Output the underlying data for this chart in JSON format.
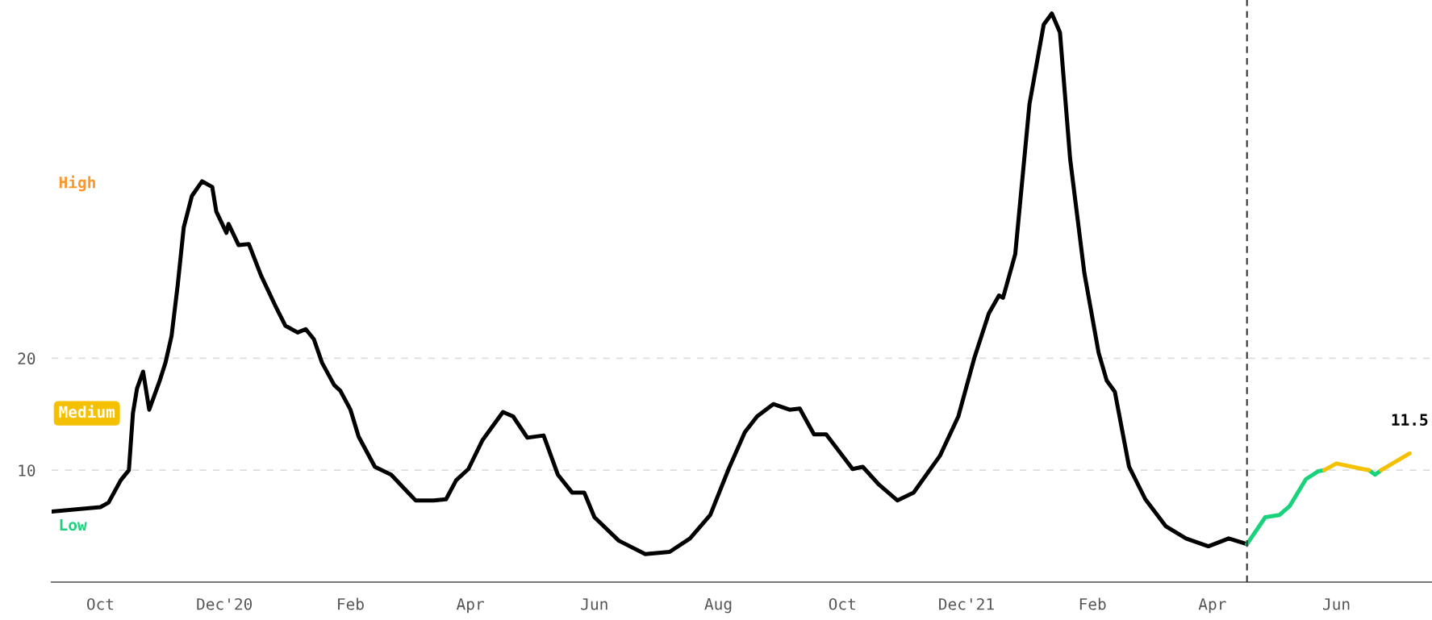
{
  "chart_data": {
    "type": "line",
    "series": [
      {
        "color": "#000000",
        "x": [
          "2020-09-07",
          "2020-10-01",
          "2020-10-05",
          "2020-10-11",
          "2020-10-15",
          "2020-10-17",
          "2020-10-19",
          "2020-10-22",
          "2020-10-25",
          "2020-10-30",
          "2020-11-02",
          "2020-11-05",
          "2020-11-08",
          "2020-11-11",
          "2020-11-15",
          "2020-11-20",
          "2020-11-25",
          "2020-11-27",
          "2020-12-02",
          "2020-12-03",
          "2020-12-08",
          "2020-12-13",
          "2020-12-19",
          "2020-12-26",
          "2020-12-31",
          "2021-01-06",
          "2021-01-10",
          "2021-01-14",
          "2021-01-18",
          "2021-01-24",
          "2021-01-27",
          "2021-02-01",
          "2021-02-05",
          "2021-02-13",
          "2021-02-21",
          "2021-03-05",
          "2021-03-14",
          "2021-03-20",
          "2021-03-25",
          "2021-03-31",
          "2021-04-07",
          "2021-04-17",
          "2021-04-22",
          "2021-04-29",
          "2021-05-07",
          "2021-05-14",
          "2021-05-21",
          "2021-05-27",
          "2021-06-01",
          "2021-06-13",
          "2021-06-26",
          "2021-07-08",
          "2021-07-18",
          "2021-07-28",
          "2021-08-06",
          "2021-08-14",
          "2021-08-20",
          "2021-08-28",
          "2021-09-05",
          "2021-09-10",
          "2021-09-17",
          "2021-09-23",
          "2021-10-06",
          "2021-10-11",
          "2021-10-19",
          "2021-10-28",
          "2021-11-05",
          "2021-11-18",
          "2021-11-27",
          "2021-12-05",
          "2021-12-12",
          "2021-12-17",
          "2021-12-19",
          "2021-12-25",
          "2022-01-01",
          "2022-01-08",
          "2022-01-12",
          "2022-01-16",
          "2022-01-21",
          "2022-01-28",
          "2022-02-04",
          "2022-02-08",
          "2022-02-12",
          "2022-02-19",
          "2022-02-27",
          "2022-03-09",
          "2022-03-19",
          "2022-03-30",
          "2022-04-09",
          "2022-04-18"
        ],
        "values": [
          6.3,
          6.7,
          7.1,
          9.1,
          10.0,
          15.1,
          17.3,
          18.8,
          15.4,
          17.9,
          19.6,
          22.0,
          26.5,
          31.7,
          34.5,
          35.8,
          35.3,
          33.1,
          31.2,
          32.0,
          30.1,
          30.2,
          27.4,
          24.7,
          22.9,
          22.3,
          22.6,
          21.7,
          19.6,
          17.6,
          17.1,
          15.4,
          13.0,
          10.3,
          9.6,
          7.3,
          7.3,
          7.4,
          9.1,
          10.1,
          12.7,
          15.2,
          14.8,
          12.9,
          13.1,
          9.6,
          8.0,
          8.0,
          5.8,
          3.7,
          2.5,
          2.7,
          3.9,
          6.0,
          10.1,
          13.4,
          14.8,
          15.9,
          15.4,
          15.5,
          13.2,
          13.2,
          10.1,
          10.3,
          8.7,
          7.3,
          8.0,
          11.3,
          14.8,
          20.1,
          24.0,
          25.6,
          25.4,
          29.3,
          42.7,
          49.8,
          50.8,
          49.1,
          37.8,
          27.6,
          20.5,
          18.0,
          17.0,
          10.3,
          7.4,
          5.0,
          3.9,
          3.2,
          3.9,
          3.4
        ]
      },
      {
        "color": "#19d37c",
        "x": [
          "2022-04-18",
          "2022-04-27",
          "2022-05-04",
          "2022-05-09",
          "2022-05-17",
          "2022-05-23",
          "2022-05-26",
          "2022-06-01",
          "2022-06-17",
          "2022-06-20",
          "2022-06-23"
        ],
        "values": [
          3.4,
          5.8,
          6.0,
          6.8,
          9.2,
          9.9,
          10.0,
          null,
          10.0,
          9.6,
          10.0
        ]
      },
      {
        "color": "#f5c000",
        "x": [
          "2022-05-26",
          "2022-06-01",
          "2022-06-14",
          "2022-06-17",
          "2022-06-20",
          "2022-06-23",
          "2022-07-07"
        ],
        "values": [
          10.0,
          10.6,
          10.1,
          10.0,
          null,
          10.0,
          11.5
        ]
      }
    ],
    "xlim": [
      "2020-09-07",
      "2022-07-18"
    ],
    "xticks": [
      {
        "value": "2020-10-01",
        "label": "Oct"
      },
      {
        "value": "2020-12-01",
        "label": "Dec'20"
      },
      {
        "value": "2021-02-01",
        "label": "Feb"
      },
      {
        "value": "2021-04-01",
        "label": "Apr"
      },
      {
        "value": "2021-06-01",
        "label": "Jun"
      },
      {
        "value": "2021-08-01",
        "label": "Aug"
      },
      {
        "value": "2021-10-01",
        "label": "Oct"
      },
      {
        "value": "2021-12-01",
        "label": "Dec'21"
      },
      {
        "value": "2022-02-01",
        "label": "Feb"
      },
      {
        "value": "2022-04-01",
        "label": "Apr"
      },
      {
        "value": "2022-06-01",
        "label": "Jun"
      }
    ],
    "ylim": [
      0,
      52
    ],
    "yticks": [
      10,
      20
    ],
    "grid": "y",
    "ref_lines": [
      {
        "axis": "x",
        "value": "2022-04-18",
        "color": "#333333",
        "line_style": "dashed"
      }
    ],
    "annotations": [
      "High",
      "Medium",
      "Low",
      {
        "text": "11.5",
        "x": "2022-07-07",
        "y": 11.5
      }
    ]
  }
}
